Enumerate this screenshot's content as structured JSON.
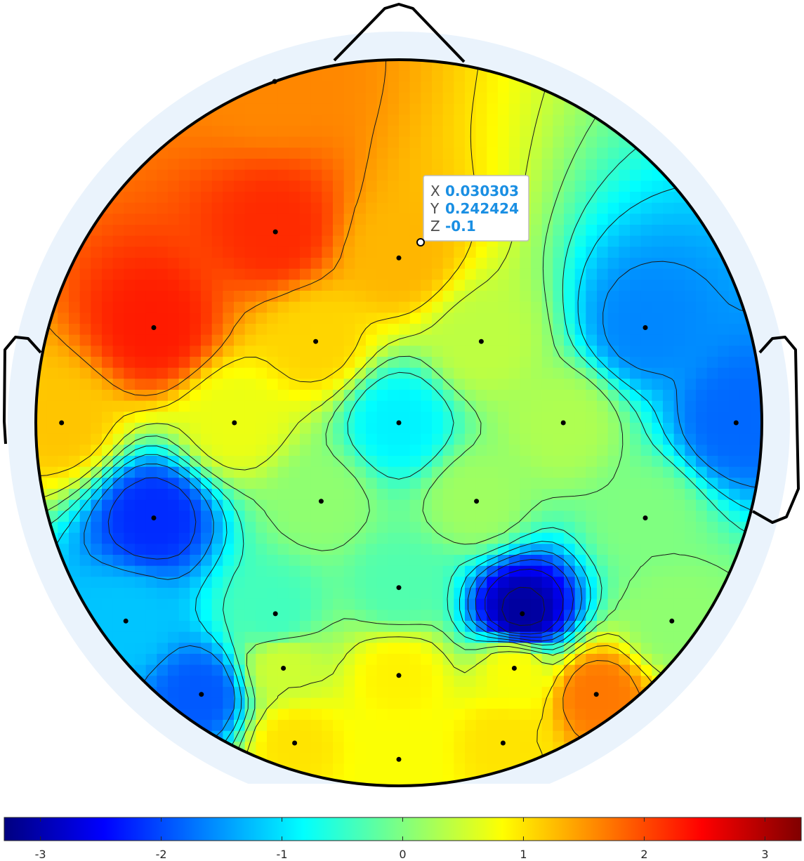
{
  "chart_data": {
    "type": "heatmap",
    "subtype": "eeg-topographic-map",
    "colormap": "jet",
    "clim": [
      -3.3,
      3.3
    ],
    "colorbar": {
      "orientation": "horizontal",
      "placement": "bottom",
      "ticks": [
        -3,
        -2,
        -1,
        0,
        1,
        2,
        3
      ],
      "tick_labels": [
        "-3",
        "-2",
        "-1",
        "0",
        "1",
        "2",
        "3"
      ]
    },
    "head_outline": {
      "nose": true,
      "ears": true
    },
    "electrodes": [
      {
        "x": -0.342,
        "y": 0.94,
        "z": 1.6
      },
      {
        "x": -0.34,
        "y": 0.526,
        "z": 2.2
      },
      {
        "x": 0.0,
        "y": 0.454,
        "z": 1.3
      },
      {
        "x": -0.675,
        "y": 0.262,
        "z": 2.3
      },
      {
        "x": -0.229,
        "y": 0.224,
        "z": 1.1
      },
      {
        "x": 0.227,
        "y": 0.224,
        "z": 0.4
      },
      {
        "x": 0.679,
        "y": 0.262,
        "z": -1.6
      },
      {
        "x": -0.929,
        "y": 0.0,
        "z": 1.2
      },
      {
        "x": -0.453,
        "y": 0.0,
        "z": 0.7
      },
      {
        "x": 0.0,
        "y": 0.0,
        "z": -0.9
      },
      {
        "x": 0.453,
        "y": 0.0,
        "z": 0.3
      },
      {
        "x": 0.929,
        "y": 0.0,
        "z": -1.8
      },
      {
        "x": -0.214,
        "y": -0.216,
        "z": 0.1
      },
      {
        "x": 0.214,
        "y": -0.216,
        "z": 0.2
      },
      {
        "x": -0.675,
        "y": -0.262,
        "z": -2.2
      },
      {
        "x": 0.679,
        "y": -0.262,
        "z": 0.0
      },
      {
        "x": 0.0,
        "y": -0.454,
        "z": -0.3
      },
      {
        "x": -0.34,
        "y": -0.526,
        "z": -0.4
      },
      {
        "x": 0.34,
        "y": -0.526,
        "z": -3.1
      },
      {
        "x": -0.752,
        "y": -0.546,
        "z": -1.2
      },
      {
        "x": 0.752,
        "y": -0.546,
        "z": 0.1
      },
      {
        "x": -0.318,
        "y": -0.676,
        "z": 0.5
      },
      {
        "x": 0.0,
        "y": -0.696,
        "z": 0.9
      },
      {
        "x": 0.318,
        "y": -0.676,
        "z": 0.8
      },
      {
        "x": -0.544,
        "y": -0.748,
        "z": -1.9
      },
      {
        "x": 0.544,
        "y": -0.748,
        "z": 1.7
      },
      {
        "x": -0.287,
        "y": -0.882,
        "z": 1.0
      },
      {
        "x": 0.0,
        "y": -0.927,
        "z": 0.8
      },
      {
        "x": 0.287,
        "y": -0.882,
        "z": 1.0
      }
    ],
    "contour_levels": [
      -3,
      -2.5,
      -2,
      -1.5,
      -1,
      -0.5,
      0,
      0.5,
      1,
      1.5
    ],
    "datatip": {
      "x": 0.030303,
      "y": 0.242424,
      "z": -0.1
    }
  },
  "datatip_text": {
    "x_key": "X",
    "x_value": "0.030303",
    "y_key": "Y",
    "y_value": "0.242424",
    "z_key": "Z",
    "z_value": "-0.1"
  }
}
